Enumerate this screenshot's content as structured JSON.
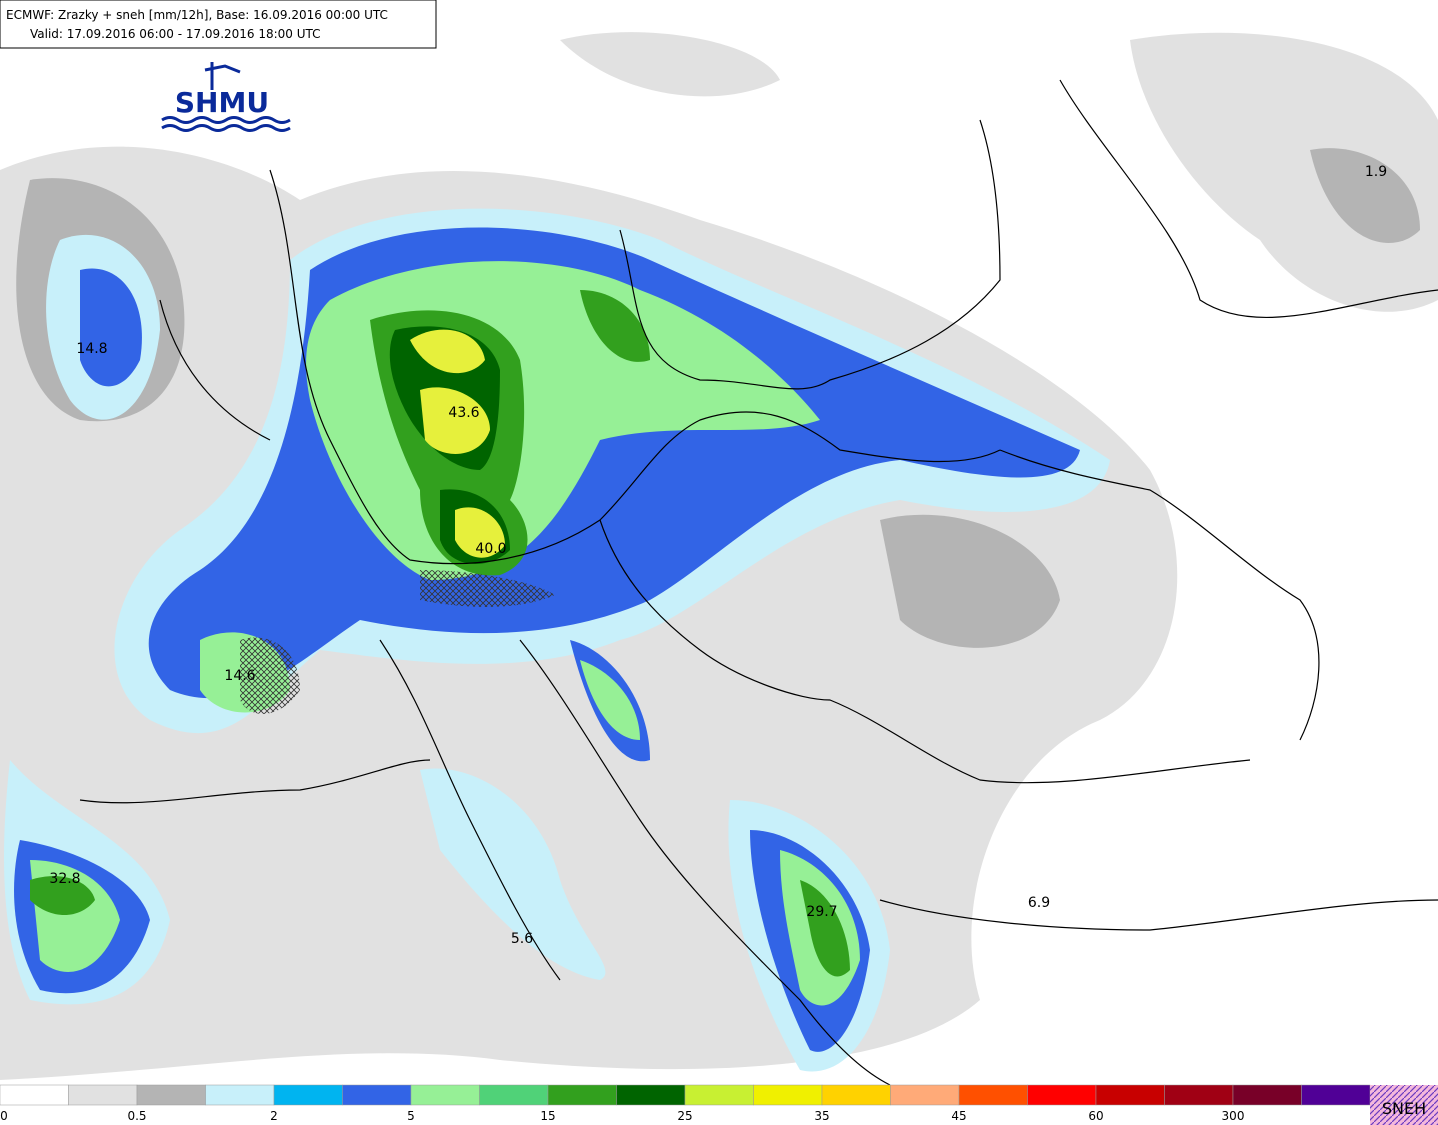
{
  "header": {
    "line1": "ECMWF: Zrazky + sneh [mm/12h], Base: 16.09.2016 00:00 UTC",
    "line2": "Valid: 17.09.2016 06:00 - 17.09.2016 18:00 UTC"
  },
  "logo": "SHMU",
  "maxima": [
    "14.8",
    "43.6",
    "40.0",
    "14.6",
    "32.8",
    "5.6",
    "29.7",
    "6.9",
    "1.9"
  ],
  "legend": {
    "colors": [
      "#ffffff",
      "#e1e1e1",
      "#b4b4b4",
      "#c8f0fa",
      "#00b4f0",
      "#3264e6",
      "#96f096",
      "#50d278",
      "#32a01e",
      "#006400",
      "#c8f032",
      "#f0f000",
      "#ffd200",
      "#ffaa78",
      "#ff5000",
      "#ff0000",
      "#c80000",
      "#a00014",
      "#780028",
      "#500096"
    ],
    "labels": [
      "0",
      "0.5",
      "2",
      "5",
      "15",
      "25",
      "35",
      "45",
      "60",
      "300"
    ],
    "snow": "SNEH"
  }
}
